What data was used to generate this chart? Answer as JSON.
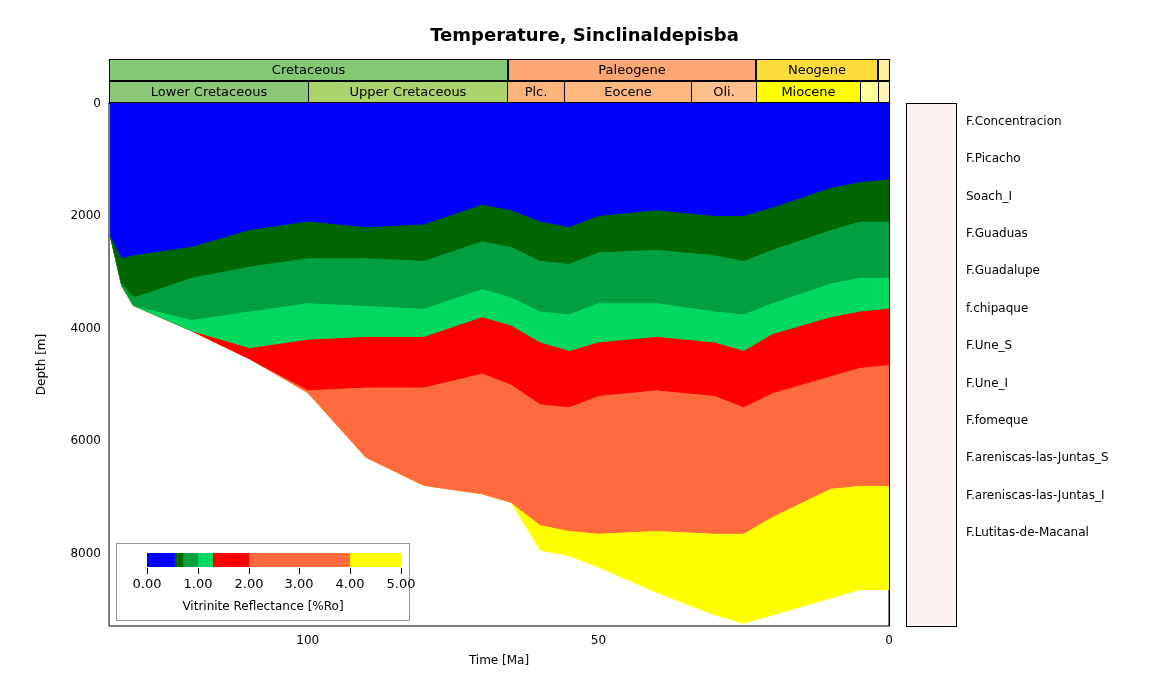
{
  "chart_data": {
    "type": "area",
    "title": "Temperature, Sinclinaldepisba",
    "xlabel": "Time [Ma]",
    "ylabel": "Depth [m]",
    "clabel": "Vitrinite Reflectance [%Ro]",
    "x": [
      134,
      132,
      130,
      120,
      110,
      100,
      90,
      80,
      70,
      65,
      60,
      55,
      50,
      40,
      30,
      25,
      20,
      10,
      5,
      0
    ],
    "series": [
      {
        "color": "#0000ff",
        "values": [
          2350,
          2750,
          2700,
          2550,
          2250,
          2100,
          2200,
          2150,
          1800,
          1900,
          2100,
          2200,
          2000,
          1900,
          2000,
          2000,
          1850,
          1500,
          1400,
          1350
        ]
      },
      {
        "color": "#006600",
        "values": [
          2350,
          3200,
          3450,
          3100,
          2900,
          2750,
          2750,
          2800,
          2450,
          2550,
          2800,
          2850,
          2650,
          2600,
          2700,
          2800,
          2600,
          2250,
          2100,
          2100
        ]
      },
      {
        "color": "#00a040",
        "values": [
          2350,
          3250,
          3600,
          3850,
          3700,
          3550,
          3600,
          3650,
          3300,
          3450,
          3700,
          3750,
          3550,
          3550,
          3700,
          3750,
          3550,
          3200,
          3100,
          3100
        ]
      },
      {
        "color": "#00d860",
        "values": [
          2350,
          3250,
          3600,
          4050,
          4350,
          4200,
          4150,
          4150,
          3800,
          3950,
          4250,
          4400,
          4250,
          4150,
          4250,
          4400,
          4100,
          3800,
          3700,
          3650
        ]
      },
      {
        "color": "#ff0000",
        "values": [
          2350,
          3250,
          3600,
          4050,
          4550,
          5100,
          5050,
          5050,
          4800,
          5000,
          5350,
          5400,
          5200,
          5100,
          5200,
          5400,
          5150,
          4850,
          4700,
          4650
        ]
      },
      {
        "color": "#ff6b3c",
        "values": [
          2350,
          3250,
          3600,
          4050,
          4550,
          5150,
          6300,
          6800,
          6950,
          7100,
          7500,
          7600,
          7650,
          7600,
          7650,
          7650,
          7350,
          6850,
          6800,
          6800
        ]
      },
      {
        "color": "#ffff00",
        "values": [
          2350,
          3250,
          3600,
          4050,
          4550,
          5150,
          6300,
          6800,
          6950,
          7100,
          7950,
          8050,
          8250,
          8700,
          9100,
          9250,
          9100,
          8800,
          8650,
          8650
        ]
      }
    ],
    "xlim": [
      134.2,
      0
    ],
    "xticks": [
      100,
      50,
      0
    ],
    "ylim": [
      9300,
      0
    ],
    "yticks": [
      0,
      2000,
      4000,
      6000,
      8000
    ],
    "annotations": [
      "F.Concentracion",
      "F.Picacho",
      "Soach_I",
      "F.Guaduas",
      "F.Guadalupe",
      "f.chipaque",
      "F.Une_S",
      "F.Une_I",
      "F.fomeque",
      "F.areniscas-las-Juntas_S",
      "F.areniscas-las-Juntas_I",
      "F.Lutitas-de-Macanal",
      "Cretaceous",
      "Paleogene",
      "Neogene",
      "Lower Cretaceous",
      "Upper Cretaceous",
      "Plc.",
      "Eocene",
      "Oli.",
      "Miocene",
      "0.00",
      "1.00",
      "2.00",
      "3.00",
      "4.00",
      "5.00"
    ]
  }
}
